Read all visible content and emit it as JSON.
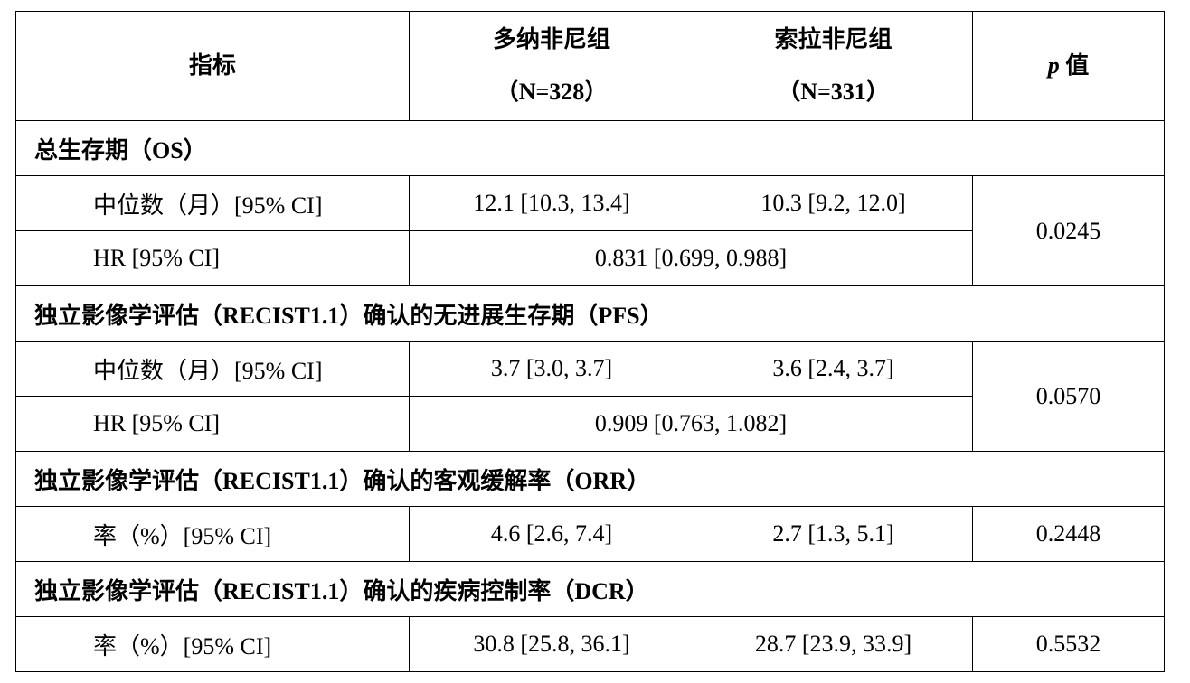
{
  "header": {
    "indicator": "指标",
    "group1_name": "多纳非尼组",
    "group1_n": "（N=328）",
    "group2_name": "索拉非尼组",
    "group2_n": "（N=331）",
    "p_symbol": "p",
    "p_label": " 值"
  },
  "sections": [
    {
      "title": "总生存期（OS）",
      "rows": [
        {
          "label": "中位数（月）[95% CI]",
          "g1": "12.1 [10.3, 13.4]",
          "g2": "10.3 [9.2, 12.0]"
        },
        {
          "label": "HR [95% CI]",
          "combined": "0.831 [0.699, 0.988]"
        }
      ],
      "p": "0.0245"
    },
    {
      "title": "独立影像学评估（RECIST1.1）确认的无进展生存期（PFS）",
      "rows": [
        {
          "label": "中位数（月）[95% CI]",
          "g1": "3.7 [3.0, 3.7]",
          "g2": "3.6 [2.4, 3.7]"
        },
        {
          "label": "HR [95% CI]",
          "combined": "0.909 [0.763, 1.082]"
        }
      ],
      "p": "0.0570"
    },
    {
      "title": "独立影像学评估（RECIST1.1）确认的客观缓解率（ORR）",
      "rows": [
        {
          "label": "率（%）[95% CI]",
          "g1": "4.6 [2.6, 7.4]",
          "g2": "2.7 [1.3, 5.1]"
        }
      ],
      "p": "0.2448"
    },
    {
      "title": "独立影像学评估（RECIST1.1）确认的疾病控制率（DCR）",
      "rows": [
        {
          "label": "率（%）[95% CI]",
          "g1": "30.8 [25.8, 36.1]",
          "g2": "28.7 [23.9, 33.9]"
        }
      ],
      "p": "0.5532"
    }
  ]
}
